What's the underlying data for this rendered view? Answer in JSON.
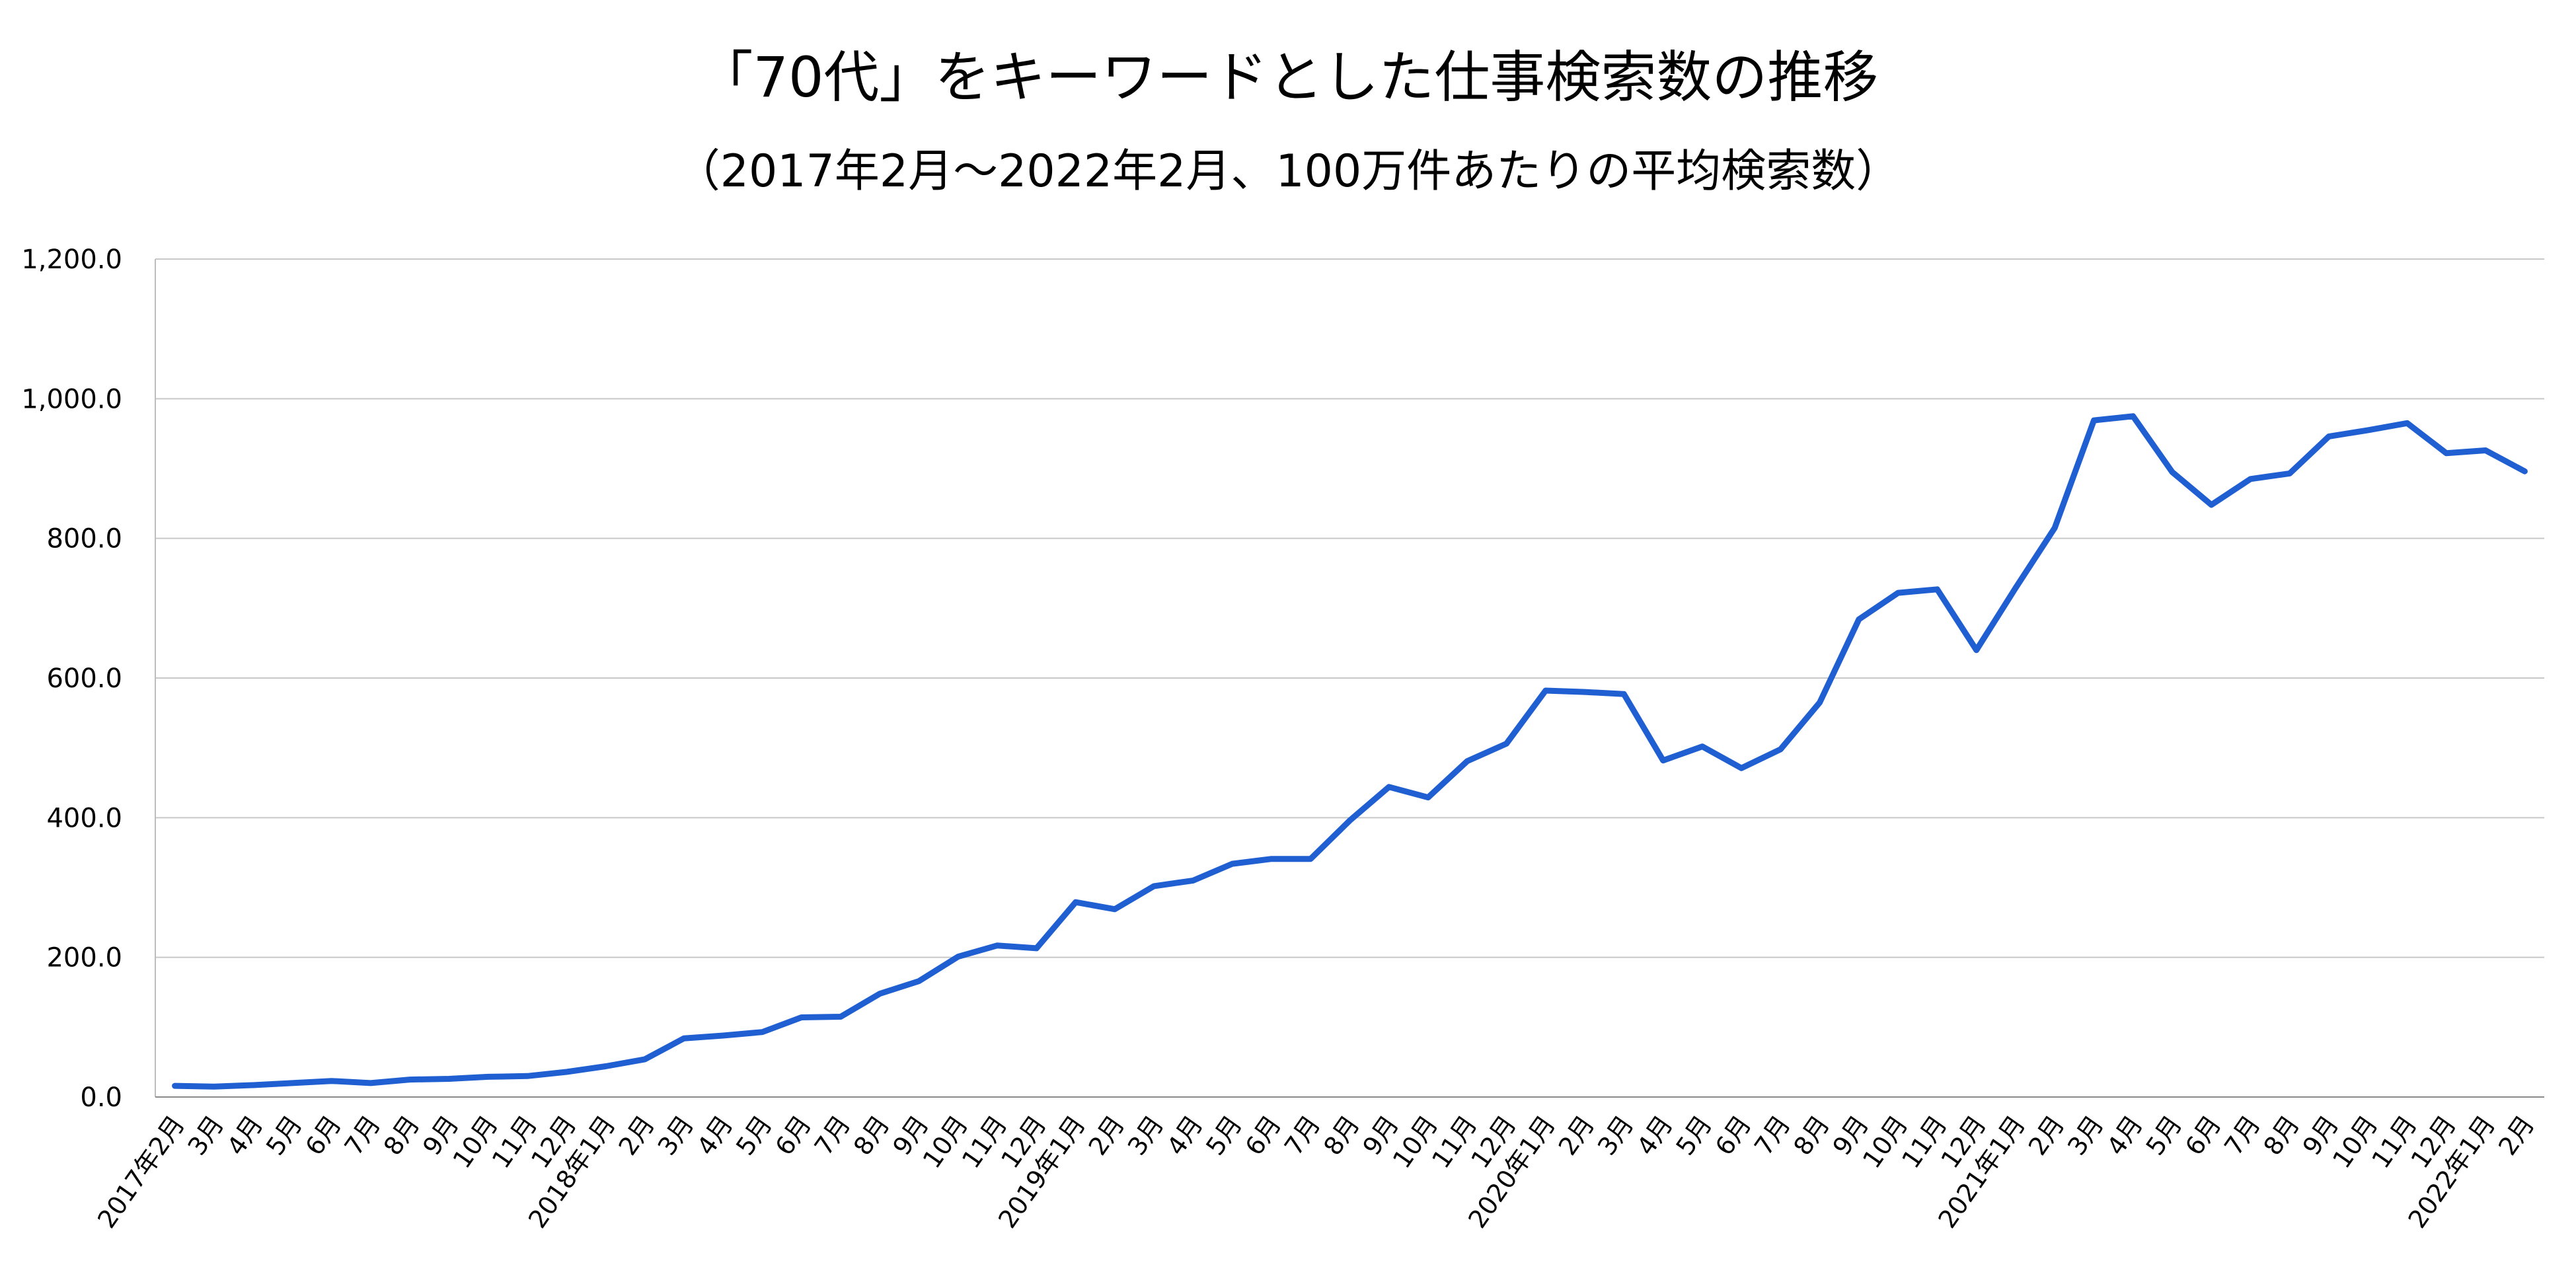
{
  "chart_data": {
    "type": "line",
    "title": "「70代」をキーワードとした仕事検索数の推移",
    "subtitle": "（2017年2月～2022年2月、100万件あたりの平均検索数）",
    "xlabel": "",
    "ylabel": "",
    "ylim": [
      0,
      1200
    ],
    "yticks": [
      "0.0",
      "200.0",
      "400.0",
      "600.0",
      "800.0",
      "1,000.0",
      "1,200.0"
    ],
    "grid": true,
    "legend": "none",
    "line_color": "#1f5fd1",
    "categories": [
      "2017年2月",
      "3月",
      "4月",
      "5月",
      "6月",
      "7月",
      "8月",
      "9月",
      "10月",
      "11月",
      "12月",
      "2018年1月",
      "2月",
      "3月",
      "4月",
      "5月",
      "6月",
      "7月",
      "8月",
      "9月",
      "10月",
      "11月",
      "12月",
      "2019年1月",
      "2月",
      "3月",
      "4月",
      "5月",
      "6月",
      "7月",
      "8月",
      "9月",
      "10月",
      "11月",
      "12月",
      "2020年1月",
      "2月",
      "3月",
      "4月",
      "5月",
      "6月",
      "7月",
      "8月",
      "9月",
      "10月",
      "11月",
      "12月",
      "2021年1月",
      "2月",
      "3月",
      "4月",
      "5月",
      "6月",
      "7月",
      "8月",
      "9月",
      "10月",
      "11月",
      "12月",
      "2022年1月",
      "2月"
    ],
    "values": [
      16,
      15,
      17,
      20,
      23,
      20,
      25,
      26,
      29,
      30,
      36,
      44,
      54,
      84,
      88,
      93,
      114,
      115,
      148,
      166,
      201,
      217,
      213,
      279,
      269,
      302,
      310,
      334,
      341,
      341,
      396,
      444,
      429,
      481,
      506,
      582,
      580,
      577,
      482,
      502,
      471,
      498,
      565,
      684,
      722,
      727,
      640,
      729,
      815,
      969,
      975,
      895,
      848,
      885,
      893,
      946,
      955,
      965,
      922,
      926,
      896
    ]
  }
}
